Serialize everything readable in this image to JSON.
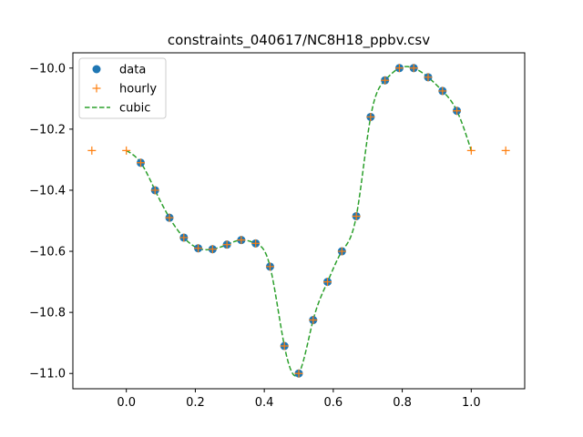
{
  "chart_data": {
    "type": "line",
    "title": "constraints_040617/NC8H18_ppbv.csv",
    "xlabel": "",
    "ylabel": "",
    "xlim": [
      -0.155,
      1.155
    ],
    "ylim": [
      -11.05,
      -9.95
    ],
    "xticks": [
      0.0,
      0.2,
      0.4,
      0.6,
      0.8,
      1.0
    ],
    "xtick_labels": [
      "0.0",
      "0.2",
      "0.4",
      "0.6",
      "0.8",
      "1.0"
    ],
    "yticks": [
      -11.0,
      -10.8,
      -10.6,
      -10.4,
      -10.2,
      -10.0
    ],
    "ytick_labels": [
      "−11.0",
      "−10.8",
      "−10.6",
      "−10.4",
      "−10.2",
      "−10.0"
    ],
    "grid": false,
    "legend": {
      "position": "top-left",
      "entries": [
        {
          "label": "data",
          "marker": "circle",
          "color": "#1f77b4"
        },
        {
          "label": "hourly",
          "marker": "plus",
          "color": "#ff7f0e"
        },
        {
          "label": "cubic",
          "marker": "dashed-line",
          "color": "#2ca02c"
        }
      ]
    },
    "series": [
      {
        "name": "data",
        "style": "points",
        "color": "#1f77b4",
        "x": [
          0.0417,
          0.0833,
          0.125,
          0.1667,
          0.2083,
          0.25,
          0.2917,
          0.3333,
          0.375,
          0.4167,
          0.4583,
          0.5,
          0.5417,
          0.5833,
          0.625,
          0.6667,
          0.7083,
          0.75,
          0.7917,
          0.8333,
          0.875,
          0.9167,
          0.9583
        ],
        "y": [
          -10.31,
          -10.4,
          -10.49,
          -10.555,
          -10.59,
          -10.593,
          -10.578,
          -10.563,
          -10.574,
          -10.65,
          -10.91,
          -11.0,
          -10.825,
          -10.7,
          -10.6,
          -10.485,
          -10.16,
          -10.04,
          -10.0,
          -10.0,
          -10.03,
          -10.075,
          -10.14
        ]
      },
      {
        "name": "hourly",
        "style": "plus",
        "color": "#ff7f0e",
        "x": [
          -0.1,
          0.0,
          0.0417,
          0.0833,
          0.125,
          0.1667,
          0.2083,
          0.25,
          0.2917,
          0.3333,
          0.375,
          0.4167,
          0.4583,
          0.5,
          0.5417,
          0.5833,
          0.625,
          0.6667,
          0.7083,
          0.75,
          0.7917,
          0.8333,
          0.875,
          0.9167,
          0.9583,
          1.0,
          1.1
        ],
        "y": [
          -10.27,
          -10.27,
          -10.31,
          -10.4,
          -10.49,
          -10.555,
          -10.59,
          -10.593,
          -10.578,
          -10.563,
          -10.574,
          -10.65,
          -10.91,
          -11.0,
          -10.825,
          -10.7,
          -10.6,
          -10.485,
          -10.16,
          -10.04,
          -10.0,
          -10.0,
          -10.03,
          -10.075,
          -10.14,
          -10.27,
          -10.27
        ]
      },
      {
        "name": "cubic",
        "style": "dashed",
        "color": "#2ca02c",
        "x": [
          0.0,
          0.0417,
          0.0833,
          0.125,
          0.1667,
          0.2083,
          0.25,
          0.2917,
          0.3333,
          0.375,
          0.4167,
          0.4583,
          0.5,
          0.5417,
          0.5833,
          0.625,
          0.6667,
          0.7083,
          0.75,
          0.7917,
          0.8333,
          0.875,
          0.9167,
          0.9583,
          1.0
        ],
        "y": [
          -10.27,
          -10.31,
          -10.4,
          -10.49,
          -10.555,
          -10.59,
          -10.593,
          -10.578,
          -10.563,
          -10.574,
          -10.65,
          -10.91,
          -11.0,
          -10.825,
          -10.7,
          -10.6,
          -10.485,
          -10.16,
          -10.04,
          -10.0,
          -10.0,
          -10.03,
          -10.075,
          -10.14,
          -10.27
        ]
      }
    ]
  }
}
